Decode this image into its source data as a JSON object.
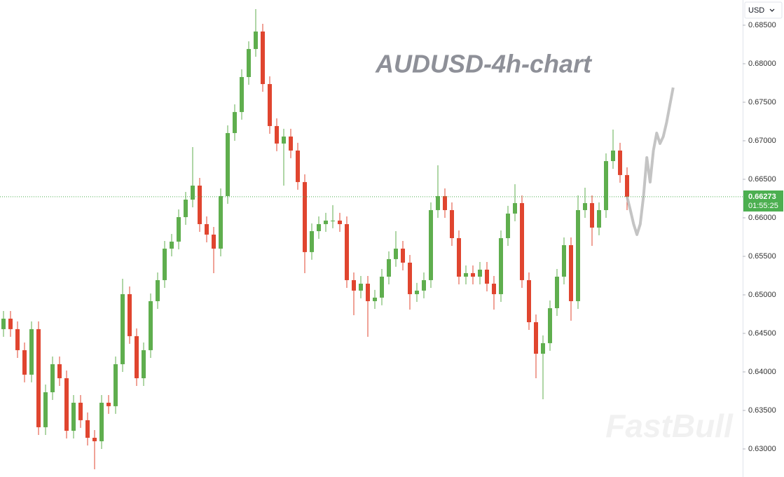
{
  "chart_data": {
    "type": "candlestick",
    "title": "AUDUSD-4h-chart",
    "currency": "USD",
    "watermark": "FastBull",
    "up_color": "#5fae4e",
    "down_color": "#e0452f",
    "open": [
      0.64555,
      0.64691,
      0.64555,
      0.64282,
      0.63964,
      0.64555,
      0.63282,
      0.63736,
      0.641,
      0.63918,
      0.63236,
      0.636,
      0.63373,
      0.63145,
      0.631,
      0.636,
      0.63555,
      0.641,
      0.65009,
      0.64464,
      0.63918,
      0.64282,
      0.64918,
      0.65191,
      0.656,
      0.65691,
      0.66009,
      0.66236,
      0.66418,
      0.65918,
      0.65782,
      0.656,
      0.66282,
      0.671,
      0.67373,
      0.67827,
      0.68191,
      0.68418,
      0.67736,
      0.67191,
      0.66964,
      0.67055,
      0.66873,
      0.66464,
      0.65555,
      0.65827,
      0.65918,
      0.65964,
      0.65964,
      0.65918,
      0.65191,
      0.65055,
      0.65145,
      0.64918,
      0.64964,
      0.65236,
      0.65464,
      0.656,
      0.65418,
      0.65009,
      0.65055,
      0.65191,
      0.661,
      0.66282,
      0.661,
      0.65736,
      0.65236,
      0.65282,
      0.65236,
      0.65327,
      0.65145,
      0.65009,
      0.65736,
      0.66055,
      0.66191,
      0.65191,
      0.64645,
      0.64236,
      0.64373,
      0.64827,
      0.65236,
      0.65645,
      0.64918,
      0.661,
      0.66191,
      0.65873,
      0.661,
      0.66736,
      0.66873,
      0.66555
    ],
    "high": [
      0.64791,
      0.64791,
      0.64655,
      0.64382,
      0.64655,
      0.64655,
      0.63836,
      0.642,
      0.642,
      0.64018,
      0.637,
      0.637,
      0.63473,
      0.63245,
      0.637,
      0.637,
      0.642,
      0.65209,
      0.65109,
      0.64564,
      0.64382,
      0.65018,
      0.65291,
      0.657,
      0.65791,
      0.66109,
      0.66336,
      0.66918,
      0.66518,
      0.66018,
      0.65882,
      0.66382,
      0.672,
      0.67473,
      0.67927,
      0.68291,
      0.68709,
      0.68518,
      0.67836,
      0.67291,
      0.67155,
      0.67155,
      0.66973,
      0.66564,
      0.65927,
      0.66018,
      0.66064,
      0.66164,
      0.66064,
      0.66018,
      0.65291,
      0.65245,
      0.65245,
      0.65064,
      0.65336,
      0.65564,
      0.65827,
      0.657,
      0.65518,
      0.65155,
      0.65291,
      0.662,
      0.66682,
      0.66382,
      0.662,
      0.65836,
      0.65382,
      0.65382,
      0.65427,
      0.65427,
      0.65245,
      0.65836,
      0.66155,
      0.66436,
      0.66291,
      0.65291,
      0.64745,
      0.64473,
      0.64927,
      0.65336,
      0.65745,
      0.65745,
      0.66291,
      0.66391,
      0.66291,
      0.662,
      0.66836,
      0.67145,
      0.66973,
      0.66655
    ],
    "low": [
      0.64455,
      0.64455,
      0.64182,
      0.63864,
      0.63864,
      0.63182,
      0.63182,
      0.63636,
      0.63818,
      0.63136,
      0.63136,
      0.63273,
      0.63045,
      0.62736,
      0.63,
      0.63455,
      0.63455,
      0.64,
      0.64364,
      0.63818,
      0.63818,
      0.64182,
      0.64818,
      0.65091,
      0.655,
      0.65591,
      0.65909,
      0.66136,
      0.65818,
      0.65682,
      0.65282,
      0.655,
      0.66182,
      0.67,
      0.67273,
      0.67727,
      0.68091,
      0.67636,
      0.67091,
      0.66864,
      0.66418,
      0.66773,
      0.66364,
      0.65282,
      0.65455,
      0.65727,
      0.65818,
      0.65864,
      0.65818,
      0.65091,
      0.64736,
      0.64955,
      0.64455,
      0.64818,
      0.64864,
      0.65136,
      0.65364,
      0.65318,
      0.64809,
      0.64909,
      0.64955,
      0.65091,
      0.66,
      0.66,
      0.65636,
      0.65136,
      0.65136,
      0.65136,
      0.65136,
      0.65045,
      0.64809,
      0.64909,
      0.65636,
      0.65955,
      0.65091,
      0.64545,
      0.63918,
      0.63645,
      0.64273,
      0.64727,
      0.65136,
      0.64664,
      0.64818,
      0.66,
      0.65636,
      0.65773,
      0.66,
      0.66636,
      0.66455,
      0.661
    ],
    "close": [
      0.64691,
      0.64555,
      0.64282,
      0.63964,
      0.64555,
      0.63282,
      0.63736,
      0.641,
      0.63918,
      0.63236,
      0.636,
      0.63373,
      0.63145,
      0.631,
      0.636,
      0.63555,
      0.641,
      0.65009,
      0.64464,
      0.63918,
      0.64282,
      0.64918,
      0.65191,
      0.656,
      0.65691,
      0.66009,
      0.66236,
      0.66418,
      0.65918,
      0.65782,
      0.656,
      0.66282,
      0.671,
      0.67373,
      0.67827,
      0.68191,
      0.68418,
      0.67736,
      0.67191,
      0.66964,
      0.67055,
      0.66873,
      0.66464,
      0.65555,
      0.65827,
      0.65918,
      0.65964,
      0.65964,
      0.65918,
      0.65191,
      0.65055,
      0.65145,
      0.64918,
      0.64964,
      0.65236,
      0.65464,
      0.656,
      0.65418,
      0.65009,
      0.65055,
      0.65191,
      0.661,
      0.66282,
      0.661,
      0.65736,
      0.65236,
      0.65282,
      0.65236,
      0.65327,
      0.65145,
      0.65009,
      0.65736,
      0.66055,
      0.66191,
      0.65191,
      0.64645,
      0.64236,
      0.64373,
      0.64827,
      0.65236,
      0.65645,
      0.64918,
      0.661,
      0.66191,
      0.65873,
      0.661,
      0.66736,
      0.66873,
      0.66555,
      0.66273
    ],
    "projection": {
      "color": "#b5b5b5",
      "values": [
        0.66273,
        0.661,
        0.65918,
        0.65782,
        0.65918,
        0.66282,
        0.66782,
        0.66464,
        0.66873,
        0.671,
        0.66964,
        0.67055,
        0.67236,
        0.67464,
        0.67691
      ]
    },
    "last_price": 0.66273,
    "last_price_color": "#4caf50",
    "countdown": "01:55:25",
    "ylim": [
      0.62636,
      0.68827
    ],
    "yticks": [
      {
        "value": 0.63,
        "label": "0.63000"
      },
      {
        "value": 0.635,
        "label": "0.63500"
      },
      {
        "value": 0.64,
        "label": "0.64000"
      },
      {
        "value": 0.645,
        "label": "0.64500"
      },
      {
        "value": 0.65,
        "label": "0.65000"
      },
      {
        "value": 0.655,
        "label": "0.65500"
      },
      {
        "value": 0.66,
        "label": "0.66000"
      },
      {
        "value": 0.665,
        "label": "0.66500"
      },
      {
        "value": 0.67,
        "label": "0.67000"
      },
      {
        "value": 0.675,
        "label": "0.67500"
      },
      {
        "value": 0.68,
        "label": "0.68000"
      },
      {
        "value": 0.685,
        "label": "0.68500"
      }
    ],
    "grid": false
  }
}
